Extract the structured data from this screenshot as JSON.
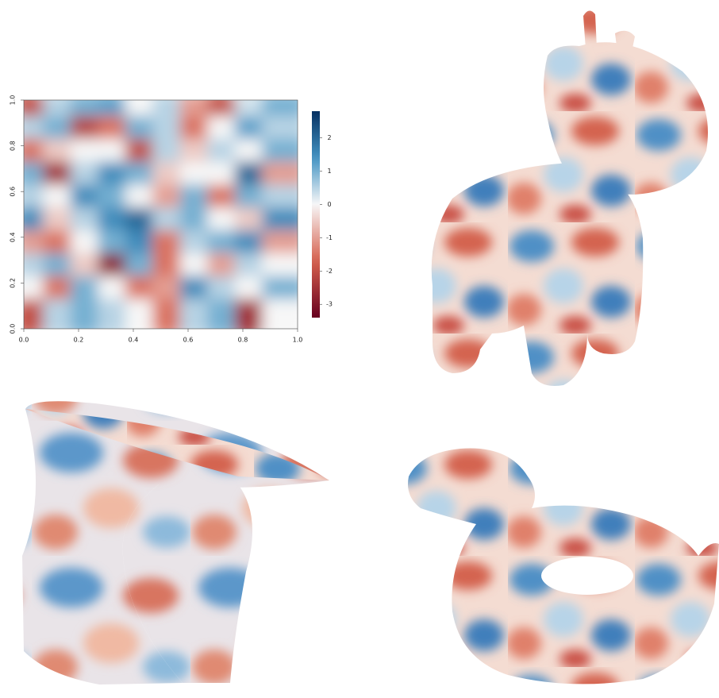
{
  "chart_data": {
    "type": "heatmap",
    "x": [
      0.05,
      0.15,
      0.25,
      0.35,
      0.45,
      0.55,
      0.65,
      0.75,
      0.85,
      0.95
    ],
    "y": [
      0.95,
      0.85,
      0.75,
      0.65,
      0.55,
      0.45,
      0.35,
      0.25,
      0.15,
      0.05
    ],
    "z": [
      [
        -2,
        0.5,
        1,
        1.2,
        0,
        0.5,
        -1,
        -2,
        0.3,
        1
      ],
      [
        0.5,
        1,
        -2.2,
        -1.5,
        1,
        0.5,
        -1.5,
        0,
        1.2,
        0.5
      ],
      [
        -1.5,
        -0.5,
        0,
        0,
        -2,
        0.5,
        -0.5,
        0.5,
        0,
        1
      ],
      [
        1,
        -2.5,
        0.5,
        1.5,
        1,
        -0.5,
        0,
        0,
        2,
        -1
      ],
      [
        0.5,
        0,
        1.5,
        1,
        0,
        -1,
        1,
        -1.5,
        1,
        0.5
      ],
      [
        1.5,
        -0.5,
        0.5,
        1.5,
        2,
        0.5,
        1,
        0,
        -0.5,
        1.5
      ],
      [
        -1,
        -1.5,
        0,
        1,
        1.5,
        -1.5,
        0.5,
        1,
        1.5,
        -1
      ],
      [
        0.5,
        1,
        -0.5,
        -2.8,
        1,
        -1.5,
        0,
        -1,
        0.5,
        0
      ],
      [
        0,
        -1.5,
        1,
        0,
        -1.5,
        -1,
        1.5,
        0.5,
        0,
        1
      ],
      [
        -2,
        0.5,
        1,
        0.5,
        0,
        -1.5,
        0.5,
        1,
        -2.5,
        0
      ]
    ],
    "xlim": [
      0,
      1
    ],
    "ylim": [
      0,
      1
    ],
    "xticks": [
      {
        "value": 0,
        "label": "0.0"
      },
      {
        "value": 0.2,
        "label": "0.2"
      },
      {
        "value": 0.4,
        "label": "0.4"
      },
      {
        "value": 0.6,
        "label": "0.6"
      },
      {
        "value": 0.8,
        "label": "0.8"
      },
      {
        "value": 1,
        "label": "1.0"
      }
    ],
    "yticks": [
      {
        "value": 0,
        "label": "0.0"
      },
      {
        "value": 0.2,
        "label": "0.2"
      },
      {
        "value": 0.4,
        "label": "0.4"
      },
      {
        "value": 0.6,
        "label": "0.6"
      },
      {
        "value": 0.8,
        "label": "0.8"
      },
      {
        "value": 1,
        "label": "1.0"
      }
    ],
    "clim": [
      -3.4,
      2.8
    ],
    "cticks": [
      2,
      1,
      0,
      -1,
      -2,
      -3
    ],
    "colorscale": [
      "#67001f",
      "#d6604d",
      "#f7f7f7",
      "#4393c3",
      "#053061"
    ]
  }
}
